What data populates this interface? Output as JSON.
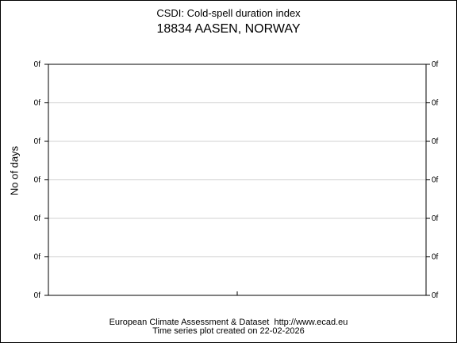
{
  "title": "CSDI: Cold-spell duration index",
  "subtitle": "18834 AASEN, NORWAY",
  "footer": {
    "line1": "European Climate Assessment & Dataset  http://www.ecad.eu",
    "line2": "Time series plot created on 22-02-2026"
  },
  "colors": {
    "axis": "#000000",
    "grid": "#d0d0d0",
    "background": "#ffffff"
  },
  "chart_data": {
    "type": "line",
    "title": "CSDI: Cold-spell duration index",
    "subtitle": "18834 AASEN, NORWAY",
    "xlabel": "",
    "ylabel": "No of days",
    "x_tick_count": 1,
    "y_tick_labels": [
      "0f",
      "0f",
      "0f",
      "0f",
      "0f",
      "0f",
      "0f"
    ],
    "y_tick_labels_right": [
      "0f",
      "0f",
      "0f",
      "0f",
      "0f",
      "0f",
      "0f"
    ],
    "series": [],
    "grid": true,
    "legend": "none"
  }
}
